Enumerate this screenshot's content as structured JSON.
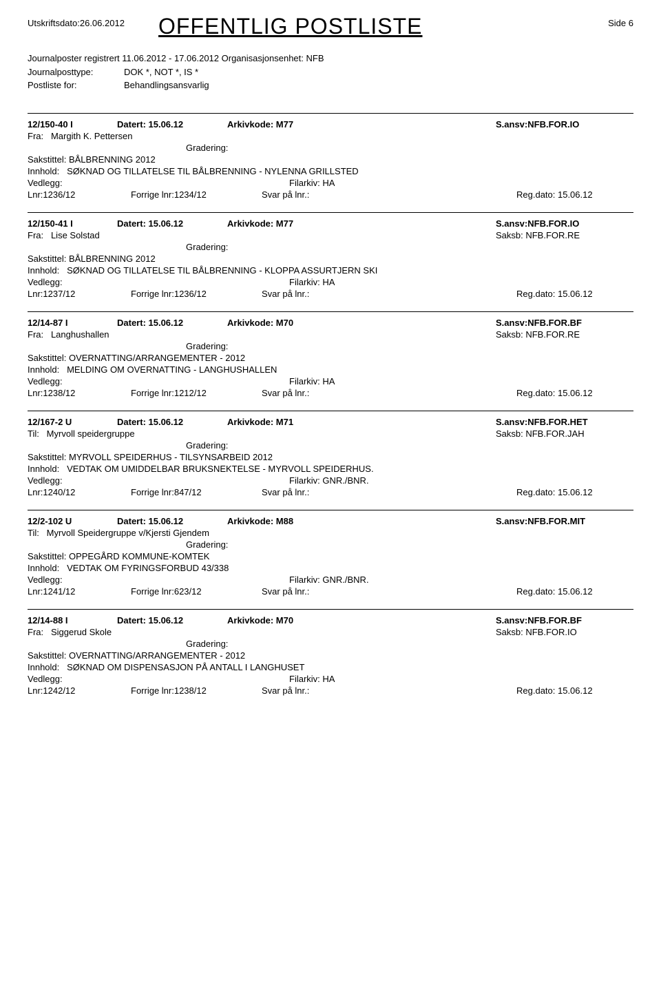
{
  "header": {
    "print_date_label": "Utskriftsdato:",
    "print_date_value": "26.06.2012",
    "title": "OFFENTLIG POSTLISTE",
    "page_label": "Side",
    "page_value": "6"
  },
  "subheader": {
    "row1_label": "Journalposter registrert",
    "row1_value": "11.06.2012 - 17.06.2012",
    "row1_org_label": "Organisasjonsenhet:",
    "row1_org_value": "NFB",
    "row2_label": "Journalposttype:",
    "row2_value": "DOK *, NOT *, IS *",
    "row3_label": "Postliste for:",
    "row3_value": "Behandlingsansvarlig"
  },
  "labels": {
    "datert": "Datert:",
    "arkivkode": "Arkivkode:",
    "ansv": "S.ansv:",
    "fra": "Fra:",
    "til": "Til:",
    "saksb": "Saksb:",
    "gradering": "Gradering:",
    "sakstittel": "Sakstittel:",
    "innhold": "Innhold:",
    "vedlegg": "Vedlegg:",
    "filarkiv": "Filarkiv:",
    "lnr": "Lnr:",
    "forrige": "Forrige lnr:",
    "svar": "Svar på lnr.:",
    "regdato": "Reg.dato:"
  },
  "entries": [
    {
      "id": "12/150-40 I",
      "datert": "15.06.12",
      "arkivkode": "M77",
      "ansv": "NFB.FOR.IO",
      "from_label": "Fra:",
      "from_value": "Margith K. Pettersen",
      "saksb": "",
      "sakstittel": "BÅLBRENNING 2012",
      "innhold": "SØKNAD OG TILLATELSE TIL BÅLBRENNING - NYLENNA GRILLSTED",
      "filarkiv": "HA",
      "lnr": "1236/12",
      "forrige": "1234/12",
      "regdato": "15.06.12"
    },
    {
      "id": "12/150-41 I",
      "datert": "15.06.12",
      "arkivkode": "M77",
      "ansv": "NFB.FOR.IO",
      "from_label": "Fra:",
      "from_value": "Lise Solstad",
      "saksb": "NFB.FOR.RE",
      "sakstittel": "BÅLBRENNING 2012",
      "innhold": "SØKNAD OG TILLATELSE TIL BÅLBRENNING - KLOPPA  ASSURTJERN  SKI",
      "filarkiv": "HA",
      "lnr": "1237/12",
      "forrige": "1236/12",
      "regdato": "15.06.12"
    },
    {
      "id": "12/14-87 I",
      "datert": "15.06.12",
      "arkivkode": "M70",
      "ansv": "NFB.FOR.BF",
      "from_label": "Fra:",
      "from_value": "Langhushallen",
      "saksb": "NFB.FOR.RE",
      "sakstittel": "OVERNATTING/ARRANGEMENTER - 2012",
      "innhold": "MELDING OM OVERNATTING - LANGHUSHALLEN",
      "filarkiv": "HA",
      "lnr": "1238/12",
      "forrige": "1212/12",
      "regdato": "15.06.12"
    },
    {
      "id": "12/167-2 U",
      "datert": "15.06.12",
      "arkivkode": "M71",
      "ansv": "NFB.FOR.HET",
      "from_label": "Til:",
      "from_value": "Myrvoll speidergruppe",
      "saksb": "NFB.FOR.JAH",
      "sakstittel": "MYRVOLL SPEIDERHUS - TILSYNSARBEID 2012",
      "innhold": "VEDTAK OM UMIDDELBAR BRUKSNEKTELSE - MYRVOLL SPEIDERHUS.",
      "filarkiv": "GNR./BNR.",
      "lnr": "1240/12",
      "forrige": "847/12",
      "regdato": "15.06.12"
    },
    {
      "id": "12/2-102 U",
      "datert": "15.06.12",
      "arkivkode": "M88",
      "ansv": "NFB.FOR.MIT",
      "from_label": "Til:",
      "from_value": "Myrvoll Speidergruppe v/Kjersti Gjendem",
      "saksb": "",
      "sakstittel": "OPPEGÅRD KOMMUNE-KOMTEK",
      "innhold": "VEDTAK OM FYRINGSFORBUD 43/338",
      "filarkiv": "GNR./BNR.",
      "lnr": "1241/12",
      "forrige": "623/12",
      "regdato": "15.06.12"
    },
    {
      "id": "12/14-88 I",
      "datert": "15.06.12",
      "arkivkode": "M70",
      "ansv": "NFB.FOR.BF",
      "from_label": "Fra:",
      "from_value": "Siggerud Skole",
      "saksb": "NFB.FOR.IO",
      "sakstittel": "OVERNATTING/ARRANGEMENTER - 2012",
      "innhold": "SØKNAD OM DISPENSASJON PÅ ANTALL I LANGHUSET",
      "filarkiv": "HA",
      "lnr": "1242/12",
      "forrige": "1238/12",
      "regdato": "15.06.12"
    }
  ]
}
